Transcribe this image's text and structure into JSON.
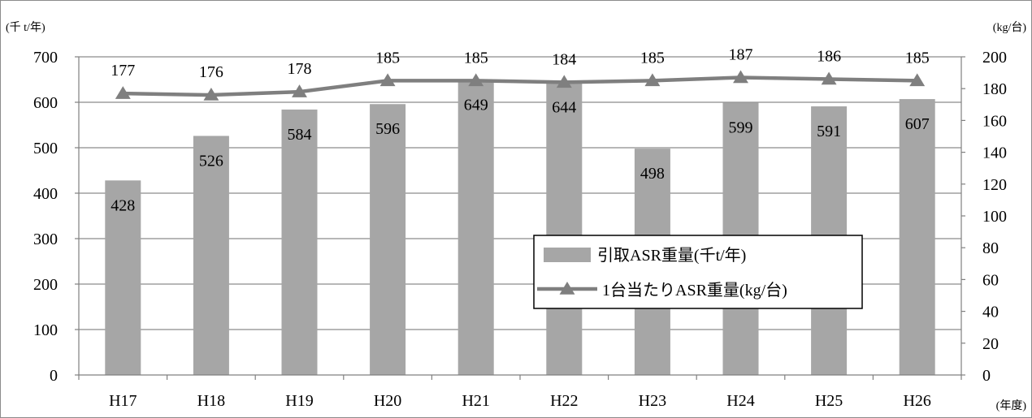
{
  "chart_data": {
    "type": "bar+line",
    "categories": [
      "H17",
      "H18",
      "H19",
      "H20",
      "H21",
      "H22",
      "H23",
      "H24",
      "H25",
      "H26"
    ],
    "series": [
      {
        "name": "引取ASR重量(千t/年)",
        "type": "bar",
        "axis": "left",
        "color": "#a6a6a6",
        "values": [
          428,
          526,
          584,
          596,
          649,
          644,
          498,
          599,
          591,
          607
        ]
      },
      {
        "name": "1台当たりASR重量(kg/台)",
        "type": "line",
        "axis": "right",
        "color": "#7f7f7f",
        "marker": "triangle",
        "values": [
          177,
          176,
          178,
          185,
          185,
          184,
          185,
          187,
          186,
          185
        ]
      }
    ],
    "y_left": {
      "unit_label": "(千 t/年)",
      "ylim": [
        0,
        700
      ],
      "ticks": [
        0,
        100,
        200,
        300,
        400,
        500,
        600,
        700
      ]
    },
    "y_right": {
      "unit_label": "(kg/台)",
      "ylim": [
        0,
        200
      ],
      "ticks": [
        0,
        20,
        40,
        60,
        80,
        100,
        120,
        140,
        160,
        180,
        200
      ]
    },
    "x_unit_label": "(年度)",
    "grid": true,
    "legend_position": "center-right"
  }
}
